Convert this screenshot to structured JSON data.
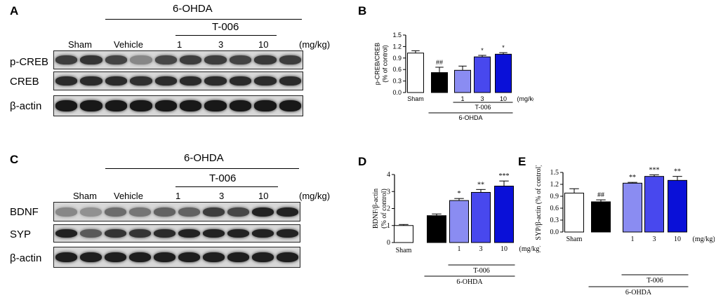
{
  "panelA": {
    "letter": "A",
    "treatment": "6-OHDA",
    "drug": "T-006",
    "groups": [
      "Sham",
      "Vehicle",
      "1",
      "3",
      "10"
    ],
    "unit": "(mg/kg)",
    "rows": [
      "p-CREB",
      "CREB",
      "β-actin"
    ]
  },
  "panelC": {
    "letter": "C",
    "treatment": "6-OHDA",
    "drug": "T-006",
    "groups": [
      "Sham",
      "Vehicle",
      "1",
      "3",
      "10"
    ],
    "unit": "(mg/kg)",
    "rows": [
      "BDNF",
      "SYP",
      "β-actin"
    ]
  },
  "chart_data": [
    {
      "letter": "B",
      "type": "bar",
      "categories": [
        "Sham",
        "Vehicle",
        "1",
        "3",
        "10"
      ],
      "category_labels": [
        "Sham",
        "",
        "1",
        "3",
        "10"
      ],
      "values": [
        1.03,
        0.52,
        0.58,
        0.93,
        1.0
      ],
      "errors": [
        0.06,
        0.14,
        0.11,
        0.04,
        0.04
      ],
      "annotations": [
        "",
        "##",
        "",
        "*",
        "*"
      ],
      "colors": [
        "#ffffff",
        "#000000",
        "#8a8cf2",
        "#4848ee",
        "#0a10d8"
      ],
      "ylabel": "p-CREB/CREB\n(% of control)",
      "ylim": [
        0,
        1.5
      ],
      "yticks": [
        "0.0",
        "0.3",
        "0.6",
        "0.9",
        "1.2",
        "1.5"
      ],
      "unit": "(mg/kg)",
      "drug": "T-006",
      "treatment": "6-OHDA"
    },
    {
      "letter": "D",
      "type": "bar",
      "categories": [
        "Sham",
        "Vehicle",
        "1",
        "3",
        "10"
      ],
      "category_labels": [
        "Sham",
        "",
        "1",
        "3",
        "10"
      ],
      "values": [
        1.0,
        1.58,
        2.47,
        2.95,
        3.32
      ],
      "errors": [
        0.06,
        0.1,
        0.12,
        0.17,
        0.3
      ],
      "annotations": [
        "",
        "",
        "*",
        "**",
        "***"
      ],
      "colors": [
        "#ffffff",
        "#000000",
        "#8a8cf2",
        "#4848ee",
        "#0a10d8"
      ],
      "ylabel": "BDNF/β-actin\n(% of control)",
      "ylim": [
        0,
        4
      ],
      "yticks": [
        "0",
        "1",
        "2",
        "3",
        "4"
      ],
      "unit": "(mg/kg)",
      "drug": "T-006",
      "treatment": "6-OHDA"
    },
    {
      "letter": "E",
      "type": "bar",
      "categories": [
        "Sham",
        "Vehicle",
        "1",
        "3",
        "10"
      ],
      "category_labels": [
        "Sham",
        "",
        "1",
        "3",
        "10"
      ],
      "values": [
        0.98,
        0.76,
        1.23,
        1.4,
        1.3
      ],
      "errors": [
        0.11,
        0.05,
        0.02,
        0.04,
        0.1
      ],
      "annotations": [
        "",
        "##",
        "**",
        "***",
        "**"
      ],
      "colors": [
        "#ffffff",
        "#000000",
        "#8a8cf2",
        "#4848ee",
        "#0a10d8"
      ],
      "ylabel": "SYP/β-actin (% of control)",
      "ylim": [
        0,
        1.5
      ],
      "yticks": [
        "0.0",
        "0.3",
        "0.6",
        "0.9",
        "1.2",
        "1.5"
      ],
      "unit": "(mg/kg)",
      "drug": "T-006",
      "treatment": "6-OHDA"
    }
  ]
}
